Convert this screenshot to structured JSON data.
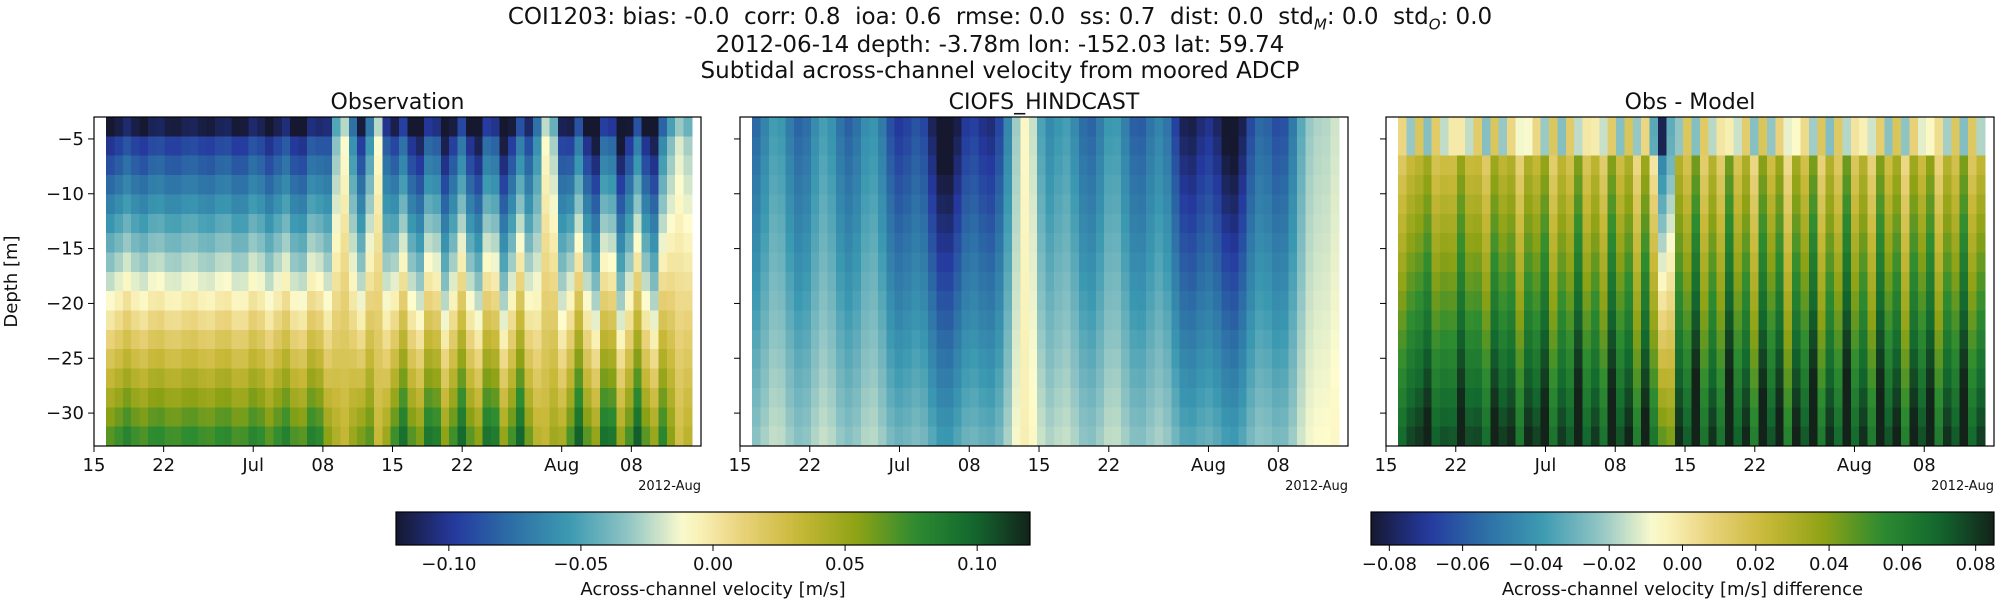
{
  "header": {
    "line1_prefix": "COI1203: bias: -0.0  corr: 0.8  ioa: 0.6  rmse: 0.0  ss: 0.7  dist: 0.0  std",
    "std_model_sub": "M",
    "line1_mid": ": 0.0  std",
    "std_obs_sub": "O",
    "line1_suffix": ": 0.0",
    "line2": "2012-06-14 depth: -3.78m lon: -152.03 lat: 59.74",
    "line3": "Subtidal across-channel velocity from moored ADCP"
  },
  "chart_data": [
    {
      "type": "heatmap",
      "title": "Observation",
      "ylabel": "Depth [m]",
      "xlabel": "",
      "x_tick_labels": [
        "15",
        "22",
        "Jul",
        "08",
        "15",
        "22",
        "Aug",
        "08"
      ],
      "x_offset_label": "2012-Aug",
      "x_range": [
        "2012-06-15",
        "2012-08-15"
      ],
      "y_ticks": [
        -5,
        -10,
        -15,
        -20,
        -25,
        -30
      ],
      "ylim": [
        -33,
        -3
      ],
      "colormap": "delta",
      "clim": [
        -0.12,
        0.12
      ],
      "value_pattern": "negative (blue, ~-0.10 m/s) near surface, positive (yellow-green, ~0.05 to 0.10 m/s) at depth; near-zero vertical streaks around 2012-07-10, 2012-07-13, 2012-07-30 and 2012-08-13"
    },
    {
      "type": "heatmap",
      "title": "CIOFS_HINDCAST",
      "ylabel": "",
      "xlabel": "",
      "x_tick_labels": [
        "15",
        "22",
        "Jul",
        "08",
        "15",
        "22",
        "Aug",
        "08"
      ],
      "x_offset_label": "2012-Aug",
      "x_range": [
        "2012-06-15",
        "2012-08-15"
      ],
      "y_ticks": [
        -5,
        -10,
        -15,
        -20,
        -25,
        -30
      ],
      "ylim": [
        -33,
        -3
      ],
      "colormap": "delta",
      "clim": [
        -0.12,
        0.12
      ],
      "value_pattern": "negative throughout; strongest (~-0.12 m/s) near surface around 2012-07-06 and 2012-08-03; near zero around 2012-07-14 and 2012-08-13"
    },
    {
      "type": "heatmap",
      "title": "Obs - Model",
      "ylabel": "",
      "xlabel": "",
      "x_tick_labels": [
        "15",
        "22",
        "Jul",
        "08",
        "15",
        "22",
        "Aug",
        "08"
      ],
      "x_offset_label": "2012-Aug",
      "x_range": [
        "2012-06-15",
        "2012-08-15"
      ],
      "y_ticks": [
        -5,
        -10,
        -15,
        -20,
        -25,
        -30
      ],
      "ylim": [
        -33,
        -3
      ],
      "colormap": "delta",
      "clim": [
        -0.085,
        0.085
      ],
      "value_pattern": "positive difference (green, 0.04 to 0.08 m/s) at depth, near zero to slightly positive near surface; negative narrow streak around 2012-07-12"
    }
  ],
  "colorbars": [
    {
      "label": "Across-channel velocity [m/s]",
      "ticks": [
        "−0.10",
        "−0.05",
        "0.00",
        "0.05",
        "0.10"
      ],
      "tick_values": [
        -0.1,
        -0.05,
        0.0,
        0.05,
        0.1
      ],
      "range": [
        -0.12,
        0.12
      ]
    },
    {
      "label": "Across-channel velocity [m/s] difference",
      "ticks": [
        "−0.08",
        "−0.06",
        "−0.04",
        "−0.02",
        "0.00",
        "0.02",
        "0.04",
        "0.06",
        "0.08"
      ],
      "tick_values": [
        -0.08,
        -0.06,
        -0.04,
        -0.02,
        0.0,
        0.02,
        0.04,
        0.06,
        0.08
      ],
      "range": [
        -0.085,
        0.085
      ]
    }
  ],
  "colors": {
    "cmap_stops": [
      "#16182f",
      "#25399f",
      "#2d6fa6",
      "#3b99b1",
      "#8dc3c4",
      "#fefccd",
      "#e9d27a",
      "#c7b837",
      "#8ea215",
      "#2e8c30",
      "#13692f",
      "#13231a"
    ]
  }
}
